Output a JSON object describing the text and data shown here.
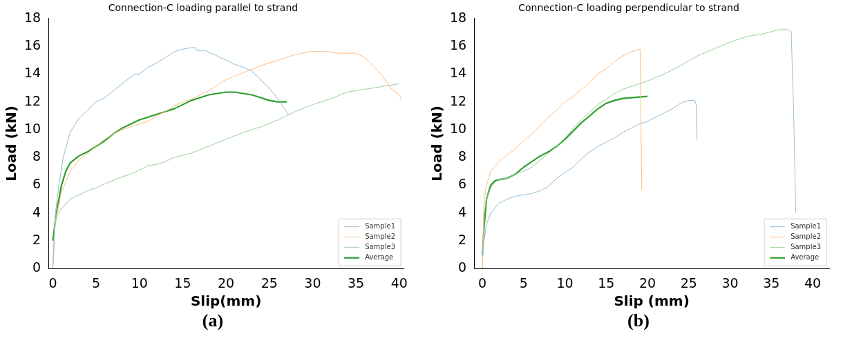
{
  "chart_data": [
    {
      "type": "line",
      "title": "Connection-C loading parallel to strand",
      "xlabel": "Slip(mm)",
      "ylabel": "Load (kN)",
      "annotations": [
        "(a)"
      ],
      "xlim": [
        -0.5,
        40.5
      ],
      "xticks": [
        0,
        5,
        10,
        15,
        20,
        25,
        30,
        35,
        40
      ],
      "ylim": [
        0,
        18
      ],
      "yticks": [
        0,
        2,
        4,
        6,
        8,
        10,
        12,
        14,
        16,
        18
      ],
      "grid": false,
      "legend": "bottom right",
      "marker": "none",
      "line_style": "solid",
      "series": [
        {
          "name": "Sample1",
          "color": "#8fbbd9",
          "x": [
            0,
            0.3,
            0.7,
            1.2,
            2,
            3,
            4,
            5,
            6,
            8,
            9.5,
            10,
            11,
            12,
            13,
            14,
            15,
            16,
            16.5,
            16.6,
            17.5,
            19,
            20,
            21,
            22,
            23,
            24,
            25,
            26,
            27.2
          ],
          "values": [
            0,
            4,
            6,
            8,
            9.8,
            10.8,
            11.4,
            12,
            12.3,
            13.3,
            14,
            14,
            14.5,
            14.8,
            15.2,
            15.6,
            15.8,
            15.9,
            15.9,
            15.7,
            15.7,
            15.3,
            15,
            14.7,
            14.5,
            14.2,
            13.6,
            13,
            12.2,
            11.1
          ]
        },
        {
          "name": "Sample2",
          "color": "#ffbb80",
          "x": [
            0,
            0.3,
            1,
            2,
            3,
            4,
            5,
            6,
            7,
            8,
            9,
            10,
            11,
            12,
            13,
            14,
            15,
            16,
            17,
            18,
            19,
            20,
            22,
            24,
            26,
            28,
            30,
            32,
            33,
            35,
            36,
            37,
            38,
            39,
            40,
            40.3
          ],
          "values": [
            0,
            3.5,
            5.5,
            7,
            7.8,
            8.3,
            8.8,
            9.3,
            9.7,
            10,
            10.2,
            10.4,
            10.6,
            11,
            11.3,
            11.7,
            12,
            12.2,
            12.5,
            12.8,
            13.2,
            13.6,
            14.1,
            14.6,
            15,
            15.4,
            15.65,
            15.6,
            15.5,
            15.5,
            15.2,
            14.6,
            13.9,
            13,
            12.5,
            12.1
          ]
        },
        {
          "name": "Sample3",
          "color": "#96d096",
          "x": [
            0,
            0.2,
            0.5,
            1,
            2,
            3,
            4,
            5,
            6,
            8,
            9,
            10,
            11,
            12,
            13,
            14,
            16,
            18,
            20,
            22,
            24,
            26,
            27,
            28,
            30,
            32,
            34,
            36,
            38,
            40
          ],
          "values": [
            0,
            3,
            3.8,
            4.3,
            5,
            5.3,
            5.6,
            5.8,
            6.1,
            6.6,
            6.8,
            7.1,
            7.4,
            7.5,
            7.7,
            8,
            8.3,
            8.8,
            9.3,
            9.8,
            10.2,
            10.7,
            11,
            11.3,
            11.8,
            12.2,
            12.7,
            12.9,
            13.1,
            13.3
          ]
        },
        {
          "name": "Average",
          "color": "#2ca02c",
          "x": [
            0,
            0.3,
            0.7,
            1,
            1.5,
            2,
            3,
            4,
            5,
            6,
            7,
            8,
            9,
            10,
            11,
            12,
            13,
            14,
            15,
            16,
            17,
            18,
            19,
            20,
            21,
            22,
            23,
            24,
            25,
            26,
            27
          ],
          "values": [
            2,
            3.5,
            5,
            6,
            7,
            7.6,
            8.1,
            8.4,
            8.8,
            9.2,
            9.7,
            10.1,
            10.4,
            10.7,
            10.9,
            11.1,
            11.3,
            11.5,
            11.8,
            12.1,
            12.3,
            12.5,
            12.6,
            12.7,
            12.7,
            12.6,
            12.5,
            12.3,
            12.1,
            12,
            12
          ]
        }
      ]
    },
    {
      "type": "line",
      "title": "Connection-C loading perpendicular to strand",
      "xlabel": "Slip (mm)",
      "ylabel": "Load (kN)",
      "annotations": [
        "(b)"
      ],
      "xlim": [
        -1,
        42
      ],
      "xticks": [
        0,
        5,
        10,
        15,
        20,
        25,
        30,
        35,
        40
      ],
      "ylim": [
        0,
        18
      ],
      "yticks": [
        0,
        2,
        4,
        6,
        8,
        10,
        12,
        14,
        16,
        18
      ],
      "grid": false,
      "legend": "bottom right",
      "marker": "none",
      "line_style": "solid",
      "series": [
        {
          "name": "Sample1",
          "color": "#8fbbd9",
          "x": [
            0,
            0.2,
            0.5,
            1,
            2,
            3,
            4,
            5,
            6,
            7,
            8,
            9,
            10,
            11,
            12,
            13,
            14,
            15,
            16,
            17,
            18,
            19,
            20,
            21,
            22,
            23,
            24,
            25,
            25.7,
            25.9,
            26
          ],
          "values": [
            0.8,
            2,
            3.2,
            4,
            4.7,
            5,
            5.2,
            5.3,
            5.4,
            5.6,
            5.9,
            6.5,
            6.9,
            7.3,
            7.9,
            8.4,
            8.8,
            9.1,
            9.4,
            9.8,
            10.1,
            10.4,
            10.6,
            10.9,
            11.2,
            11.5,
            11.9,
            12.1,
            12.1,
            11.8,
            9.3
          ]
        },
        {
          "name": "Sample2",
          "color": "#ffbb80",
          "x": [
            0,
            0.2,
            0.5,
            1,
            2,
            3,
            4,
            5,
            6,
            7,
            8,
            9,
            10,
            11,
            12,
            13,
            14,
            15,
            16,
            17,
            18,
            19,
            19.1,
            19.3
          ],
          "values": [
            0,
            5,
            6,
            7,
            7.7,
            8.2,
            8.6,
            9.2,
            9.7,
            10.3,
            10.9,
            11.4,
            12,
            12.4,
            12.9,
            13.4,
            14,
            14.4,
            14.9,
            15.3,
            15.6,
            15.8,
            15.8,
            5.7
          ]
        },
        {
          "name": "Sample3",
          "color": "#96d096",
          "x": [
            0,
            0.2,
            0.5,
            1,
            1.5,
            2,
            3,
            4,
            5,
            6,
            7,
            8,
            9,
            10,
            11,
            12,
            13,
            14,
            15,
            16,
            17,
            18,
            20,
            22,
            24,
            26,
            28,
            30,
            32,
            34,
            36,
            37,
            37.4,
            37.7,
            37.95
          ],
          "values": [
            0,
            4,
            5,
            5.8,
            6.2,
            6.4,
            6.5,
            6.8,
            7,
            7.3,
            7.8,
            8.3,
            8.8,
            9.4,
            10.1,
            10.7,
            11.3,
            11.8,
            12.2,
            12.6,
            12.9,
            13.1,
            13.5,
            14,
            14.6,
            15.3,
            15.8,
            16.3,
            16.7,
            16.9,
            17.2,
            17.2,
            17.05,
            11,
            4
          ]
        },
        {
          "name": "Average",
          "color": "#2ca02c",
          "x": [
            0,
            0.2,
            0.5,
            1,
            1.5,
            2,
            3,
            4,
            5,
            6,
            7,
            8,
            9,
            10,
            11,
            12,
            13,
            14,
            15,
            16,
            17,
            18,
            19,
            20
          ],
          "values": [
            1,
            3,
            5,
            6,
            6.3,
            6.4,
            6.5,
            6.8,
            7.3,
            7.7,
            8.1,
            8.4,
            8.8,
            9.3,
            9.9,
            10.5,
            11,
            11.5,
            11.9,
            12.1,
            12.25,
            12.3,
            12.35,
            12.4
          ]
        }
      ]
    }
  ]
}
